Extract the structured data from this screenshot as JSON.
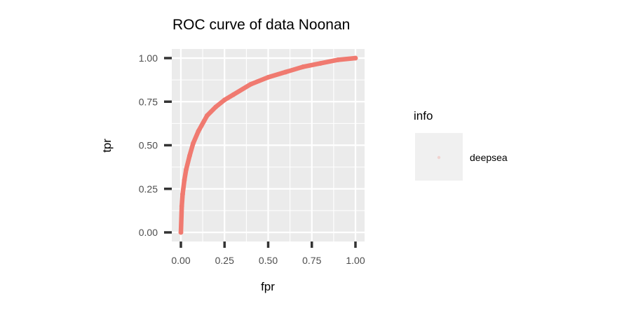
{
  "chart_data": {
    "type": "line",
    "title": "ROC curve of data Noonan",
    "xlabel": "fpr",
    "ylabel": "tpr",
    "xlim": [
      0,
      1
    ],
    "ylim": [
      0,
      1
    ],
    "x_ticks": [
      0,
      0.25,
      0.5,
      0.75,
      1
    ],
    "y_ticks": [
      0,
      0.25,
      0.5,
      0.75,
      1
    ],
    "x_tick_labels": [
      "0.00",
      "0.25",
      "0.50",
      "0.75",
      "1.00"
    ],
    "y_tick_labels": [
      "0.00",
      "0.25",
      "0.50",
      "0.75",
      "1.00"
    ],
    "grid": true,
    "legend": {
      "title": "info",
      "placement": "right"
    },
    "series": [
      {
        "name": "deepsea",
        "color": "#f07a70",
        "x": [
          0,
          0.005,
          0.01,
          0.02,
          0.03,
          0.05,
          0.07,
          0.1,
          0.15,
          0.2,
          0.25,
          0.3,
          0.4,
          0.5,
          0.6,
          0.7,
          0.8,
          0.9,
          1.0
        ],
        "y": [
          0,
          0.15,
          0.22,
          0.3,
          0.36,
          0.44,
          0.51,
          0.58,
          0.67,
          0.72,
          0.76,
          0.79,
          0.85,
          0.89,
          0.92,
          0.95,
          0.97,
          0.99,
          1.0
        ]
      }
    ]
  }
}
